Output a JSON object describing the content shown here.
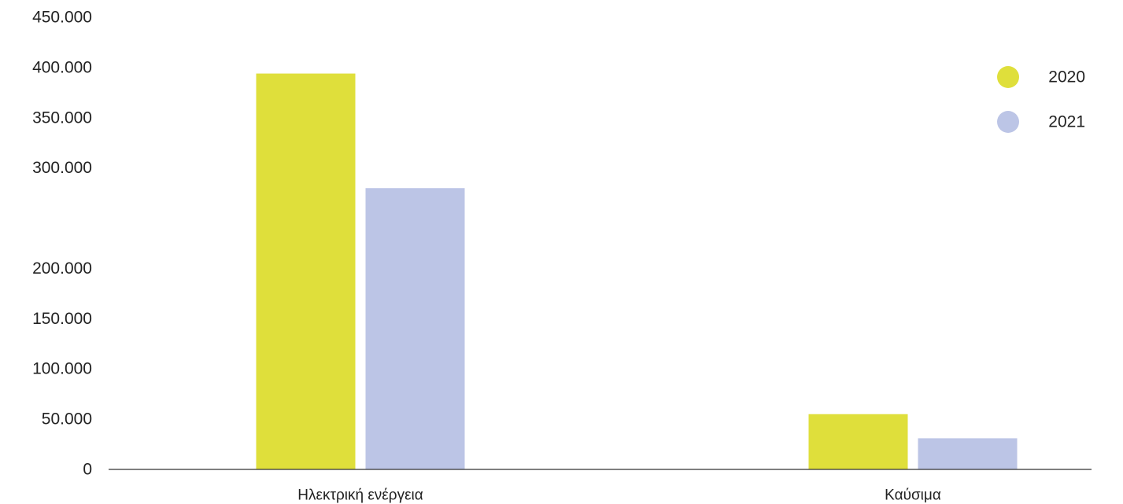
{
  "chart_data": {
    "type": "bar",
    "title": "",
    "xlabel": "",
    "ylabel": "",
    "categories": [
      "Ηλεκτρική ενέργεια",
      "Καύσιμα"
    ],
    "series": [
      {
        "name": "2020",
        "color": "#DFDF3B",
        "values": [
          394000,
          55000
        ]
      },
      {
        "name": "2021",
        "color": "#BCC5E6",
        "values": [
          280000,
          31000
        ]
      }
    ],
    "y_ticks": [
      {
        "value": 0,
        "label": "0"
      },
      {
        "value": 50000,
        "label": "50.000"
      },
      {
        "value": 100000,
        "label": "100.000"
      },
      {
        "value": 150000,
        "label": "150.000"
      },
      {
        "value": 200000,
        "label": "200.000"
      },
      {
        "value": 300000,
        "label": "300.000"
      },
      {
        "value": 350000,
        "label": "350.000"
      },
      {
        "value": 400000,
        "label": "400.000"
      },
      {
        "value": 450000,
        "label": "450.000"
      }
    ],
    "ylim": [
      0,
      450000
    ],
    "grid": false,
    "legend_position": "top-right",
    "axis_color": "#333333"
  }
}
